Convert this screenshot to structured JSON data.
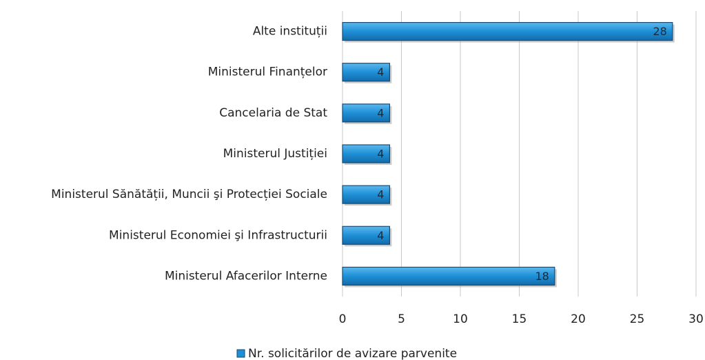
{
  "chart_data": {
    "type": "bar",
    "orientation": "horizontal",
    "categories": [
      "Alte instituții",
      "Ministerul Finanțelor",
      "Cancelaria de Stat",
      "Ministerul Justiției",
      "Ministerul Sănătății, Muncii şi Protecției Sociale",
      "Ministerul Economiei şi Infrastructurii",
      "Ministerul Afacerilor Interne"
    ],
    "series": [
      {
        "name": "Nr. solicitărilor de avizare parvenite",
        "color": "#1e8fd6",
        "values": [
          28,
          4,
          4,
          4,
          4,
          4,
          18
        ]
      }
    ],
    "xlim": [
      0,
      30
    ],
    "xticks": [
      0,
      5,
      10,
      15,
      20,
      25,
      30
    ],
    "grid": true,
    "legend": "bottom"
  }
}
